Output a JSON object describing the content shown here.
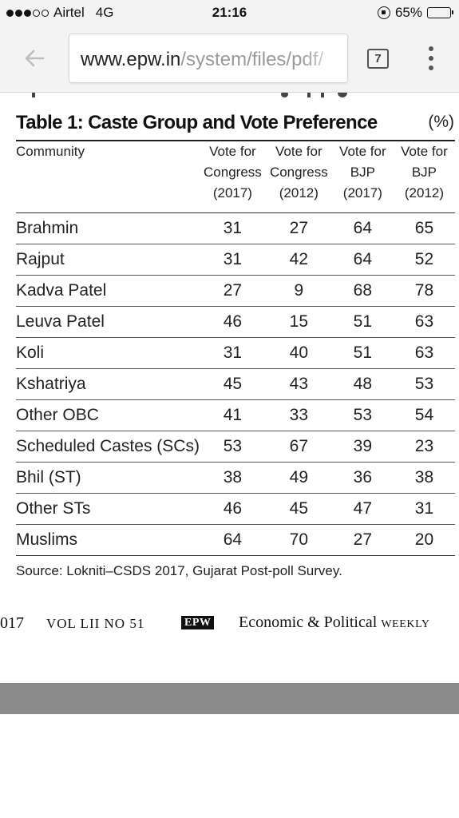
{
  "status_bar": {
    "carrier": "Airtel",
    "network": "4G",
    "time": "21:16",
    "battery": "65%",
    "battery_level": 0.65
  },
  "browser": {
    "url_domain": "www.epw.in",
    "url_path": "/system/files/pdf/",
    "tab_count": "7"
  },
  "table": {
    "title": "Table 1: Caste Group and Vote Preference",
    "unit": "(%)",
    "headers": [
      "Community",
      [
        "Vote for",
        "Congress",
        "(2017)"
      ],
      [
        "Vote for",
        "Congress",
        "(2012)"
      ],
      [
        "Vote for",
        "BJP",
        "(2017)"
      ],
      [
        "Vote for",
        "BJP",
        "(2012)"
      ]
    ],
    "rows": [
      [
        "Brahmin",
        "31",
        "27",
        "64",
        "65"
      ],
      [
        "Rajput",
        "31",
        "42",
        "64",
        "52"
      ],
      [
        "Kadva Patel",
        "27",
        "9",
        "68",
        "78"
      ],
      [
        "Leuva Patel",
        "46",
        "15",
        "51",
        "63"
      ],
      [
        "Koli",
        "31",
        "40",
        "51",
        "63"
      ],
      [
        "Kshatriya",
        "45",
        "43",
        "48",
        "53"
      ],
      [
        "Other OBC",
        "41",
        "33",
        "53",
        "54"
      ],
      [
        "Scheduled Castes (SCs)",
        "53",
        "67",
        "39",
        "23"
      ],
      [
        "Bhil (ST)",
        "38",
        "49",
        "36",
        "38"
      ],
      [
        "Other STs",
        "46",
        "45",
        "47",
        "31"
      ],
      [
        "Muslims",
        "64",
        "70",
        "27",
        "20"
      ]
    ],
    "source": "Source: Lokniti–CSDS 2017, Gujarat Post-poll Survey."
  },
  "footer": {
    "page_fragment": "017",
    "volume": "VOL LII NO 51",
    "badge": "EPW",
    "publication": "Economic & Political",
    "publication_sc": "weekly"
  }
}
